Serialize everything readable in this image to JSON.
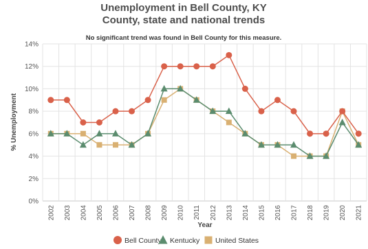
{
  "chart_data": {
    "type": "line",
    "title_line1": "Unemployment in Bell County, KY",
    "title_line2": "County, state and national trends",
    "subtitle": "No significant trend was found in Bell County for this measure.",
    "xlabel": "Year",
    "ylabel": "% Unemployment",
    "ylim": [
      0,
      14
    ],
    "y_ticks": [
      "0%",
      "2%",
      "4%",
      "6%",
      "8%",
      "10%",
      "12%",
      "14%"
    ],
    "grid": true,
    "legend_position": "bottom",
    "categories": [
      "2002",
      "2003",
      "2004",
      "2005",
      "2006",
      "2007",
      "2008",
      "2009",
      "2010",
      "2011",
      "2012",
      "2013",
      "2014",
      "2015",
      "2016",
      "2017",
      "2018",
      "2019",
      "2020",
      "2021"
    ],
    "series": [
      {
        "name": "Bell County",
        "color": "#d9614a",
        "marker": "circle",
        "values": [
          9,
          9,
          7,
          7,
          8,
          8,
          9,
          12,
          12,
          12,
          12,
          13,
          10,
          8,
          9,
          8,
          6,
          6,
          8,
          6
        ]
      },
      {
        "name": "Kentucky",
        "color": "#5b8c6e",
        "marker": "triangle",
        "values": [
          6,
          6,
          5,
          6,
          6,
          5,
          6,
          10,
          10,
          9,
          8,
          8,
          6,
          5,
          5,
          5,
          4,
          4,
          7,
          5
        ]
      },
      {
        "name": "United States",
        "color": "#d9b072",
        "marker": "square",
        "values": [
          6,
          6,
          6,
          5,
          5,
          5,
          6,
          9,
          10,
          9,
          8,
          7,
          6,
          5,
          5,
          4,
          4,
          4,
          8,
          5
        ]
      }
    ]
  }
}
